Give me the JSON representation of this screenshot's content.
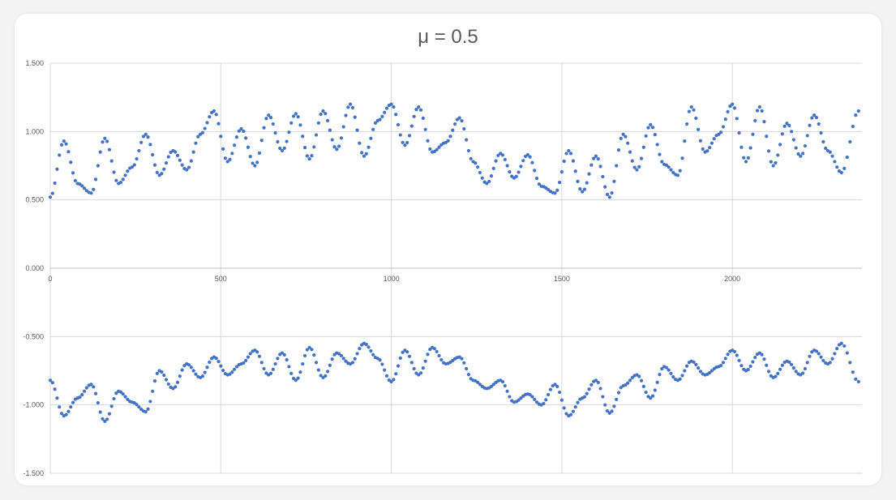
{
  "chart_data": {
    "type": "scatter",
    "title": "μ = 0.5",
    "xlabel": "",
    "ylabel": "",
    "xlim": [
      0,
      2380
    ],
    "ylim": [
      -1.5,
      1.5
    ],
    "x_ticks": [
      0,
      500,
      1000,
      1500,
      2000
    ],
    "x_tick_labels": [
      "0",
      "500",
      "1000",
      "1500",
      "2000"
    ],
    "y_ticks": [
      1.5,
      1.0,
      0.5,
      0.0,
      -0.5,
      -1.0,
      -1.5
    ],
    "y_tick_labels": [
      "1.500",
      "1.000",
      "0.500",
      "0.000",
      "-0.500",
      "-1.000",
      "-1.500"
    ],
    "grid": true,
    "legend": "none",
    "marker_color": "#4472c4",
    "series": [
      {
        "x": [
          0,
          40,
          80,
          120,
          160,
          200,
          240,
          280,
          320,
          360,
          400,
          440,
          480,
          520,
          560,
          600,
          640,
          680,
          720,
          760,
          800,
          840,
          880,
          920,
          960,
          1000,
          1040,
          1080,
          1120,
          1160,
          1200,
          1240,
          1280,
          1320,
          1360,
          1400,
          1440,
          1480,
          1520,
          1560,
          1600,
          1640,
          1680,
          1720,
          1760,
          1800,
          1840,
          1880,
          1920,
          1960,
          2000,
          2040,
          2080,
          2120,
          2160,
          2200,
          2240,
          2280,
          2320,
          2370
        ],
        "y": [
          0.52,
          0.93,
          0.62,
          0.55,
          0.95,
          0.62,
          0.74,
          0.98,
          0.68,
          0.86,
          0.72,
          0.98,
          1.15,
          0.78,
          1.02,
          0.75,
          1.12,
          0.86,
          1.13,
          0.8,
          1.15,
          0.87,
          1.2,
          0.82,
          1.08,
          1.2,
          0.9,
          1.18,
          0.85,
          0.92,
          1.1,
          0.78,
          0.62,
          0.84,
          0.66,
          0.83,
          0.6,
          0.55,
          0.86,
          0.56,
          0.82,
          0.52,
          0.98,
          0.72,
          1.05,
          0.76,
          0.68,
          1.18,
          0.85,
          0.98,
          1.2,
          0.78,
          1.18,
          0.75,
          1.06,
          0.82,
          1.12,
          0.86,
          0.7,
          1.15
        ]
      },
      {
        "x": [
          0,
          40,
          80,
          120,
          160,
          200,
          240,
          280,
          320,
          360,
          400,
          440,
          480,
          520,
          560,
          600,
          640,
          680,
          720,
          760,
          800,
          840,
          880,
          920,
          960,
          1000,
          1040,
          1080,
          1120,
          1160,
          1200,
          1240,
          1280,
          1320,
          1360,
          1400,
          1440,
          1480,
          1520,
          1560,
          1600,
          1640,
          1680,
          1720,
          1760,
          1800,
          1840,
          1880,
          1920,
          1960,
          2000,
          2040,
          2080,
          2120,
          2160,
          2200,
          2240,
          2280,
          2320,
          2370
        ],
        "y": [
          -0.82,
          -1.08,
          -0.95,
          -0.85,
          -1.12,
          -0.9,
          -0.98,
          -1.05,
          -0.75,
          -0.88,
          -0.7,
          -0.8,
          -0.65,
          -0.78,
          -0.7,
          -0.6,
          -0.78,
          -0.62,
          -0.82,
          -0.58,
          -0.8,
          -0.62,
          -0.7,
          -0.55,
          -0.66,
          -0.83,
          -0.6,
          -0.78,
          -0.58,
          -0.7,
          -0.65,
          -0.82,
          -0.88,
          -0.82,
          -0.98,
          -0.92,
          -1.0,
          -0.85,
          -1.08,
          -0.95,
          -0.82,
          -1.06,
          -0.86,
          -0.78,
          -0.95,
          -0.72,
          -0.82,
          -0.68,
          -0.78,
          -0.72,
          -0.6,
          -0.75,
          -0.62,
          -0.8,
          -0.68,
          -0.78,
          -0.6,
          -0.7,
          -0.55,
          -0.83
        ]
      }
    ]
  }
}
